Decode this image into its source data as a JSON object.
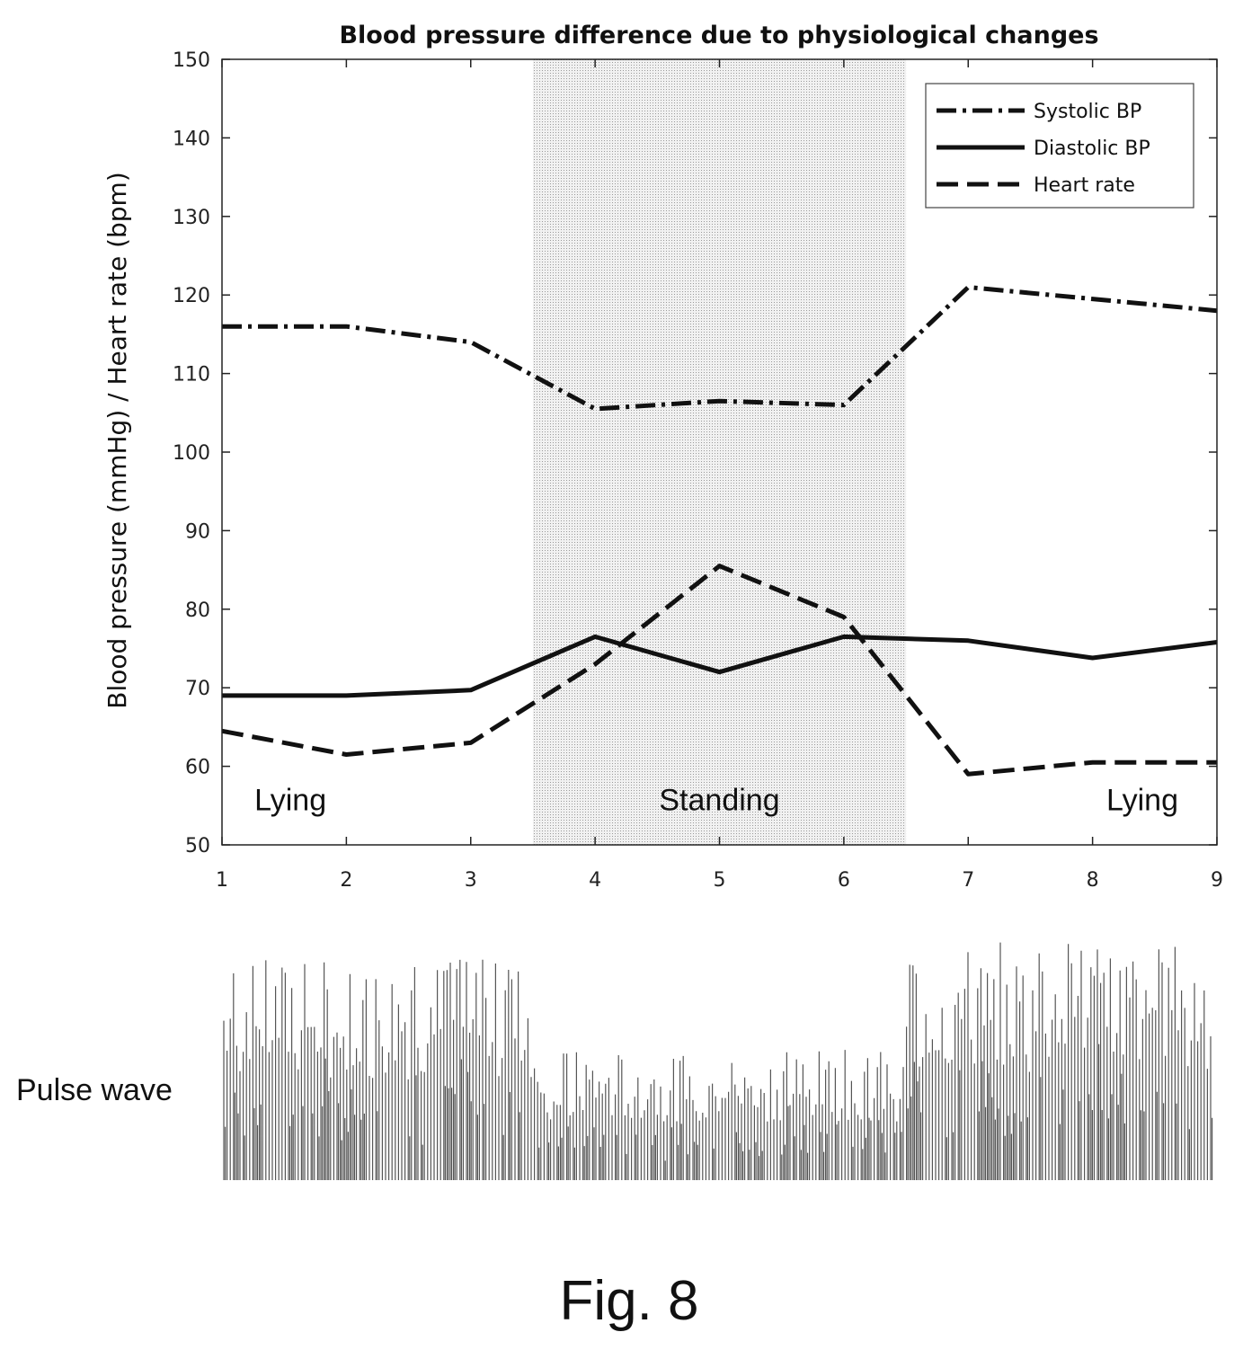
{
  "chart_data": {
    "type": "line",
    "title": "Blood pressure difference due to physiological changes",
    "xlabel": "",
    "ylabel": "Blood pressure (mmHg) / Heart rate (bpm)",
    "x": [
      1,
      2,
      3,
      4,
      5,
      6,
      7,
      8,
      9
    ],
    "xlim": [
      1,
      9
    ],
    "ylim": [
      50,
      150
    ],
    "xticks": [
      1,
      2,
      3,
      4,
      5,
      6,
      7,
      8,
      9
    ],
    "yticks": [
      50,
      60,
      70,
      80,
      90,
      100,
      110,
      120,
      130,
      140,
      150
    ],
    "grid": false,
    "legend_position": "top-right",
    "series": [
      {
        "name": "Systolic BP",
        "style": "dash-dot",
        "values": [
          116,
          116,
          114,
          105.5,
          106.5,
          106,
          121,
          119.5,
          118
        ]
      },
      {
        "name": "Diastolic BP",
        "style": "solid",
        "values": [
          69,
          69,
          69.7,
          76.5,
          72,
          76.5,
          76,
          73.8,
          75.8
        ]
      },
      {
        "name": "Heart rate",
        "style": "dashed",
        "values": [
          64.5,
          61.5,
          63,
          73,
          85.5,
          79,
          59,
          60.5,
          60.5
        ]
      }
    ],
    "shaded_region": {
      "x_start": 3.5,
      "x_end": 6.5,
      "label": "Standing"
    },
    "annotations": [
      {
        "text": "Lying",
        "x": 1.55,
        "y": 56
      },
      {
        "text": "Standing",
        "x": 5.0,
        "y": 56
      },
      {
        "text": "Lying",
        "x": 8.4,
        "y": 56
      }
    ]
  },
  "pulse_wave": {
    "label": "Pulse wave",
    "segments": [
      {
        "from": 1.0,
        "to": 3.5,
        "amplitude": 0.85
      },
      {
        "from": 3.5,
        "to": 6.5,
        "amplitude": 0.5
      },
      {
        "from": 6.5,
        "to": 9.0,
        "amplitude": 0.92
      }
    ]
  },
  "caption": "Fig. 8",
  "colors": {
    "line": "#111111",
    "shade": "#e4e4e4",
    "axis": "#222222",
    "pulse": "#555555"
  }
}
